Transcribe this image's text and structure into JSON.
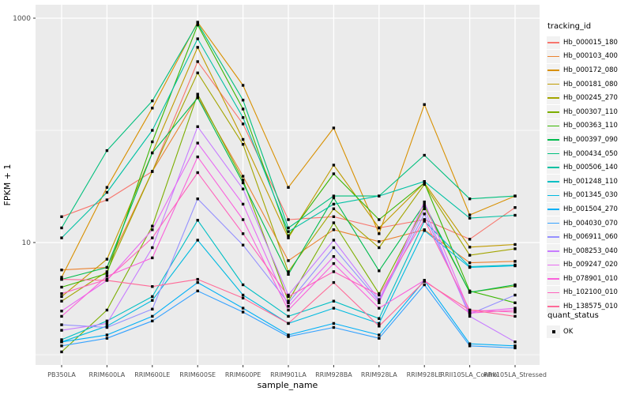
{
  "panel": {
    "bg": "#EBEBEB",
    "grid_color": "#FFFFFF",
    "tick_label_color": "#4D4D4D",
    "point_color": "#000000"
  },
  "chart_data": {
    "type": "line",
    "title": "",
    "xlabel": "sample_name",
    "ylabel": "FPKM + 1",
    "y_scale": "log10",
    "ylim": [
      0.9,
      1250
    ],
    "y_tick_labels": [
      "1000",
      "10"
    ],
    "y_tick_values": [
      1000,
      10
    ],
    "y_minor_values": [
      100,
      1
    ],
    "grid": true,
    "legend_position": "right",
    "legend_title": "tracking_id",
    "quant_legend_title": "quant_status",
    "quant_legend_label": "OK",
    "point_shape": "square",
    "categories": [
      "PB350LA",
      "RRIM600LA",
      "RRIM600LE",
      "RRIM600SE",
      "RRIM600PE",
      "RRIM901LA",
      "RRIM928BA",
      "RRIM928LA",
      "RRIM928LE",
      "RRII105LA_Control",
      "RRII105LA_Stressed"
    ],
    "series": [
      {
        "name": "Hb_000015_180",
        "color": "#F8766D",
        "values": [
          17,
          24,
          43,
          410,
          114,
          16,
          17,
          13.5,
          16,
          10.7,
          20.5
        ]
      },
      {
        "name": "Hb_000103_400",
        "color": "#EA8331",
        "values": [
          5.7,
          6.0,
          43,
          200,
          39,
          6.9,
          13,
          10.2,
          13,
          6.6,
          6.8
        ]
      },
      {
        "name": "Hb_000172_080",
        "color": "#D89000",
        "values": [
          4.9,
          31,
          158,
          920,
          252,
          31,
          105,
          12,
          170,
          17.6,
          26
        ]
      },
      {
        "name": "Hb_000181_080",
        "color": "#C09B00",
        "values": [
          3.3,
          7.1,
          63,
          550,
          83,
          11,
          49,
          13.5,
          34,
          9.1,
          9.6
        ]
      },
      {
        "name": "Hb_000245_270",
        "color": "#A3A500",
        "values": [
          3.0,
          5.5,
          43,
          325,
          75,
          5.5,
          20,
          9.0,
          33,
          7.7,
          8.8
        ]
      },
      {
        "name": "Hb_000307_110",
        "color": "#7CAE00",
        "values": [
          1.06,
          2.5,
          14,
          210,
          36,
          3.0,
          15,
          3.5,
          21,
          3.6,
          4.1
        ]
      },
      {
        "name": "Hb_000363_110",
        "color": "#39B600",
        "values": [
          4.0,
          5.3,
          79,
          870,
          155,
          11.5,
          41,
          16,
          34,
          3.7,
          2.9
        ]
      },
      {
        "name": "Hb_000397_090",
        "color": "#00BB4E",
        "values": [
          4.7,
          6.0,
          63,
          195,
          34,
          5.2,
          25,
          5.6,
          22,
          3.6,
          4.2
        ]
      },
      {
        "name": "Hb_000434_050",
        "color": "#00BF7D",
        "values": [
          13.5,
          66,
          183,
          900,
          186,
          13.5,
          26,
          26,
          60,
          24.5,
          26
        ]
      },
      {
        "name": "Hb_000506_140",
        "color": "#00C1A3",
        "values": [
          11,
          28,
          100,
          655,
          130,
          12.5,
          22,
          26,
          35,
          16.5,
          17.5
        ]
      },
      {
        "name": "Hb_001248_110",
        "color": "#00BFC4",
        "values": [
          1.36,
          2.0,
          3.3,
          15.8,
          4.2,
          2.2,
          3.0,
          2.1,
          15.5,
          6.1,
          6.3
        ]
      },
      {
        "name": "Hb_001345_030",
        "color": "#00BAE0",
        "values": [
          1.3,
          1.8,
          3.05,
          10.5,
          3.4,
          1.9,
          2.6,
          1.9,
          12.8,
          6.0,
          6.2
        ]
      },
      {
        "name": "Hb_001504_270",
        "color": "#00B0F6",
        "values": [
          1.3,
          1.5,
          2.2,
          4.4,
          2.6,
          1.5,
          1.9,
          1.5,
          4.6,
          1.25,
          1.2
        ]
      },
      {
        "name": "Hb_004030_070",
        "color": "#35A2FF",
        "values": [
          1.2,
          1.4,
          2.0,
          3.7,
          2.4,
          1.45,
          1.75,
          1.4,
          4.2,
          1.2,
          1.15
        ]
      },
      {
        "name": "Hb_006911_060",
        "color": "#9590FF",
        "values": [
          1.85,
          1.75,
          2.55,
          24.5,
          9.5,
          2.9,
          9.0,
          3.0,
          18,
          2.3,
          3.4
        ]
      },
      {
        "name": "Hb_008253_040",
        "color": "#C77CFF",
        "values": [
          1.65,
          1.9,
          9.0,
          108,
          30,
          3.4,
          10.5,
          3.1,
          20,
          2.2,
          1.3
        ]
      },
      {
        "name": "Hb_009247_020",
        "color": "#E76BF3",
        "values": [
          2.45,
          4.6,
          13,
          77,
          22,
          2.7,
          7.5,
          2.9,
          23,
          2.4,
          2.6
        ]
      },
      {
        "name": "Hb_078901_010",
        "color": "#FA62DB",
        "values": [
          2.2,
          5.0,
          7.3,
          58,
          16,
          2.5,
          6.5,
          2.6,
          4.6,
          2.35,
          2.5
        ]
      },
      {
        "name": "Hb_102100_010",
        "color": "#FF62BC",
        "values": [
          3.5,
          4.7,
          11,
          42,
          12,
          3.3,
          5.5,
          3.4,
          16,
          2.5,
          2.4
        ]
      },
      {
        "name": "Hb_138575_010",
        "color": "#FF6A98",
        "values": [
          4.7,
          4.6,
          4.05,
          4.7,
          3.2,
          1.9,
          4.4,
          1.8,
          4.5,
          2.5,
          2.2
        ]
      }
    ]
  }
}
